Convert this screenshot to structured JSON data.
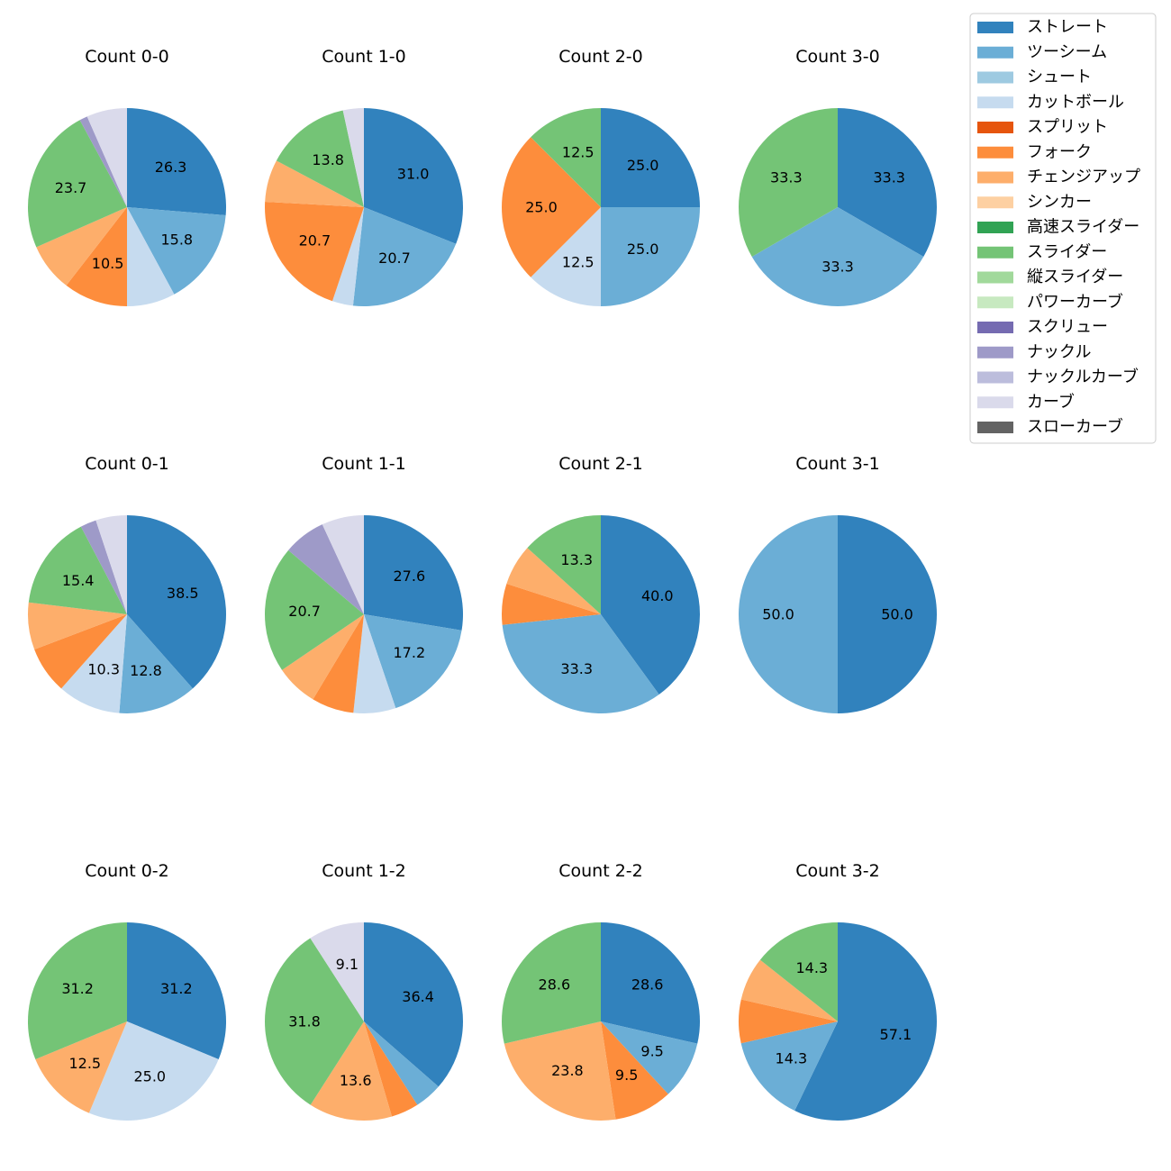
{
  "chart_data": {
    "type": "pie",
    "legend_position": "top-right",
    "categories": [
      "ストレート",
      "ツーシーム",
      "シュート",
      "カットボール",
      "スプリット",
      "フォーク",
      "チェンジアップ",
      "シンカー",
      "高速スライダー",
      "スライダー",
      "縦スライダー",
      "パワーカーブ",
      "スクリュー",
      "ナックル",
      "ナックルカーブ",
      "カーブ",
      "スローカーブ"
    ],
    "colors": [
      "#3182bd",
      "#6baed6",
      "#9ecae1",
      "#c6dbef",
      "#e6550d",
      "#fd8d3c",
      "#fdae6b",
      "#fdd0a2",
      "#31a354",
      "#74c476",
      "#a1d99b",
      "#c7e9c0",
      "#756bb1",
      "#9e9ac8",
      "#bcbddc",
      "#dadaeb",
      "#636363"
    ],
    "charts": [
      {
        "title": "Count 0-0",
        "slices": [
          {
            "cat": 0,
            "value": 26.3,
            "label": "26.3"
          },
          {
            "cat": 1,
            "value": 15.8,
            "label": "15.8"
          },
          {
            "cat": 3,
            "value": 7.9,
            "label": ""
          },
          {
            "cat": 5,
            "value": 10.5,
            "label": "10.5"
          },
          {
            "cat": 6,
            "value": 7.9,
            "label": ""
          },
          {
            "cat": 9,
            "value": 23.7,
            "label": "23.7"
          },
          {
            "cat": 13,
            "value": 1.3,
            "label": ""
          },
          {
            "cat": 15,
            "value": 6.6,
            "label": ""
          }
        ]
      },
      {
        "title": "Count 1-0",
        "slices": [
          {
            "cat": 0,
            "value": 31.0,
            "label": "31.0"
          },
          {
            "cat": 1,
            "value": 20.7,
            "label": "20.7"
          },
          {
            "cat": 3,
            "value": 3.4,
            "label": ""
          },
          {
            "cat": 5,
            "value": 20.7,
            "label": "20.7"
          },
          {
            "cat": 6,
            "value": 6.9,
            "label": ""
          },
          {
            "cat": 9,
            "value": 13.8,
            "label": "13.8"
          },
          {
            "cat": 15,
            "value": 3.4,
            "label": ""
          }
        ]
      },
      {
        "title": "Count 2-0",
        "slices": [
          {
            "cat": 0,
            "value": 25.0,
            "label": "25.0"
          },
          {
            "cat": 1,
            "value": 25.0,
            "label": "25.0"
          },
          {
            "cat": 3,
            "value": 12.5,
            "label": "12.5"
          },
          {
            "cat": 5,
            "value": 25.0,
            "label": "25.0"
          },
          {
            "cat": 9,
            "value": 12.5,
            "label": "12.5"
          }
        ]
      },
      {
        "title": "Count 3-0",
        "slices": [
          {
            "cat": 0,
            "value": 33.3,
            "label": "33.3"
          },
          {
            "cat": 1,
            "value": 33.3,
            "label": "33.3"
          },
          {
            "cat": 9,
            "value": 33.3,
            "label": "33.3"
          }
        ]
      },
      {
        "title": "Count 0-1",
        "slices": [
          {
            "cat": 0,
            "value": 38.5,
            "label": "38.5"
          },
          {
            "cat": 1,
            "value": 12.8,
            "label": "12.8"
          },
          {
            "cat": 3,
            "value": 10.3,
            "label": "10.3"
          },
          {
            "cat": 5,
            "value": 7.7,
            "label": ""
          },
          {
            "cat": 6,
            "value": 7.7,
            "label": ""
          },
          {
            "cat": 9,
            "value": 15.4,
            "label": "15.4"
          },
          {
            "cat": 13,
            "value": 2.6,
            "label": ""
          },
          {
            "cat": 15,
            "value": 5.1,
            "label": ""
          }
        ]
      },
      {
        "title": "Count 1-1",
        "slices": [
          {
            "cat": 0,
            "value": 27.6,
            "label": "27.6"
          },
          {
            "cat": 1,
            "value": 17.2,
            "label": "17.2"
          },
          {
            "cat": 3,
            "value": 6.9,
            "label": ""
          },
          {
            "cat": 5,
            "value": 6.9,
            "label": ""
          },
          {
            "cat": 6,
            "value": 6.9,
            "label": ""
          },
          {
            "cat": 9,
            "value": 20.7,
            "label": "20.7"
          },
          {
            "cat": 13,
            "value": 6.9,
            "label": ""
          },
          {
            "cat": 15,
            "value": 6.9,
            "label": ""
          }
        ]
      },
      {
        "title": "Count 2-1",
        "slices": [
          {
            "cat": 0,
            "value": 40.0,
            "label": "40.0"
          },
          {
            "cat": 1,
            "value": 33.3,
            "label": "33.3"
          },
          {
            "cat": 5,
            "value": 6.7,
            "label": ""
          },
          {
            "cat": 6,
            "value": 6.7,
            "label": ""
          },
          {
            "cat": 9,
            "value": 13.3,
            "label": "13.3"
          }
        ]
      },
      {
        "title": "Count 3-1",
        "slices": [
          {
            "cat": 0,
            "value": 50.0,
            "label": "50.0"
          },
          {
            "cat": 1,
            "value": 50.0,
            "label": "50.0"
          }
        ]
      },
      {
        "title": "Count 0-2",
        "slices": [
          {
            "cat": 0,
            "value": 31.2,
            "label": "31.2"
          },
          {
            "cat": 3,
            "value": 25.0,
            "label": "25.0"
          },
          {
            "cat": 6,
            "value": 12.5,
            "label": "12.5"
          },
          {
            "cat": 9,
            "value": 31.2,
            "label": "31.2"
          }
        ]
      },
      {
        "title": "Count 1-2",
        "slices": [
          {
            "cat": 0,
            "value": 36.4,
            "label": "36.4"
          },
          {
            "cat": 1,
            "value": 4.5,
            "label": ""
          },
          {
            "cat": 5,
            "value": 4.5,
            "label": ""
          },
          {
            "cat": 6,
            "value": 13.6,
            "label": "13.6"
          },
          {
            "cat": 9,
            "value": 31.8,
            "label": "31.8"
          },
          {
            "cat": 15,
            "value": 9.1,
            "label": "9.1"
          }
        ]
      },
      {
        "title": "Count 2-2",
        "slices": [
          {
            "cat": 0,
            "value": 28.6,
            "label": "28.6"
          },
          {
            "cat": 1,
            "value": 9.5,
            "label": "9.5"
          },
          {
            "cat": 5,
            "value": 9.5,
            "label": "9.5"
          },
          {
            "cat": 6,
            "value": 23.8,
            "label": "23.8"
          },
          {
            "cat": 9,
            "value": 28.6,
            "label": "28.6"
          }
        ]
      },
      {
        "title": "Count 3-2",
        "slices": [
          {
            "cat": 0,
            "value": 57.1,
            "label": "57.1"
          },
          {
            "cat": 1,
            "value": 14.3,
            "label": "14.3"
          },
          {
            "cat": 5,
            "value": 7.1,
            "label": ""
          },
          {
            "cat": 6,
            "value": 7.1,
            "label": ""
          },
          {
            "cat": 9,
            "value": 14.3,
            "label": "14.3"
          }
        ]
      }
    ]
  }
}
